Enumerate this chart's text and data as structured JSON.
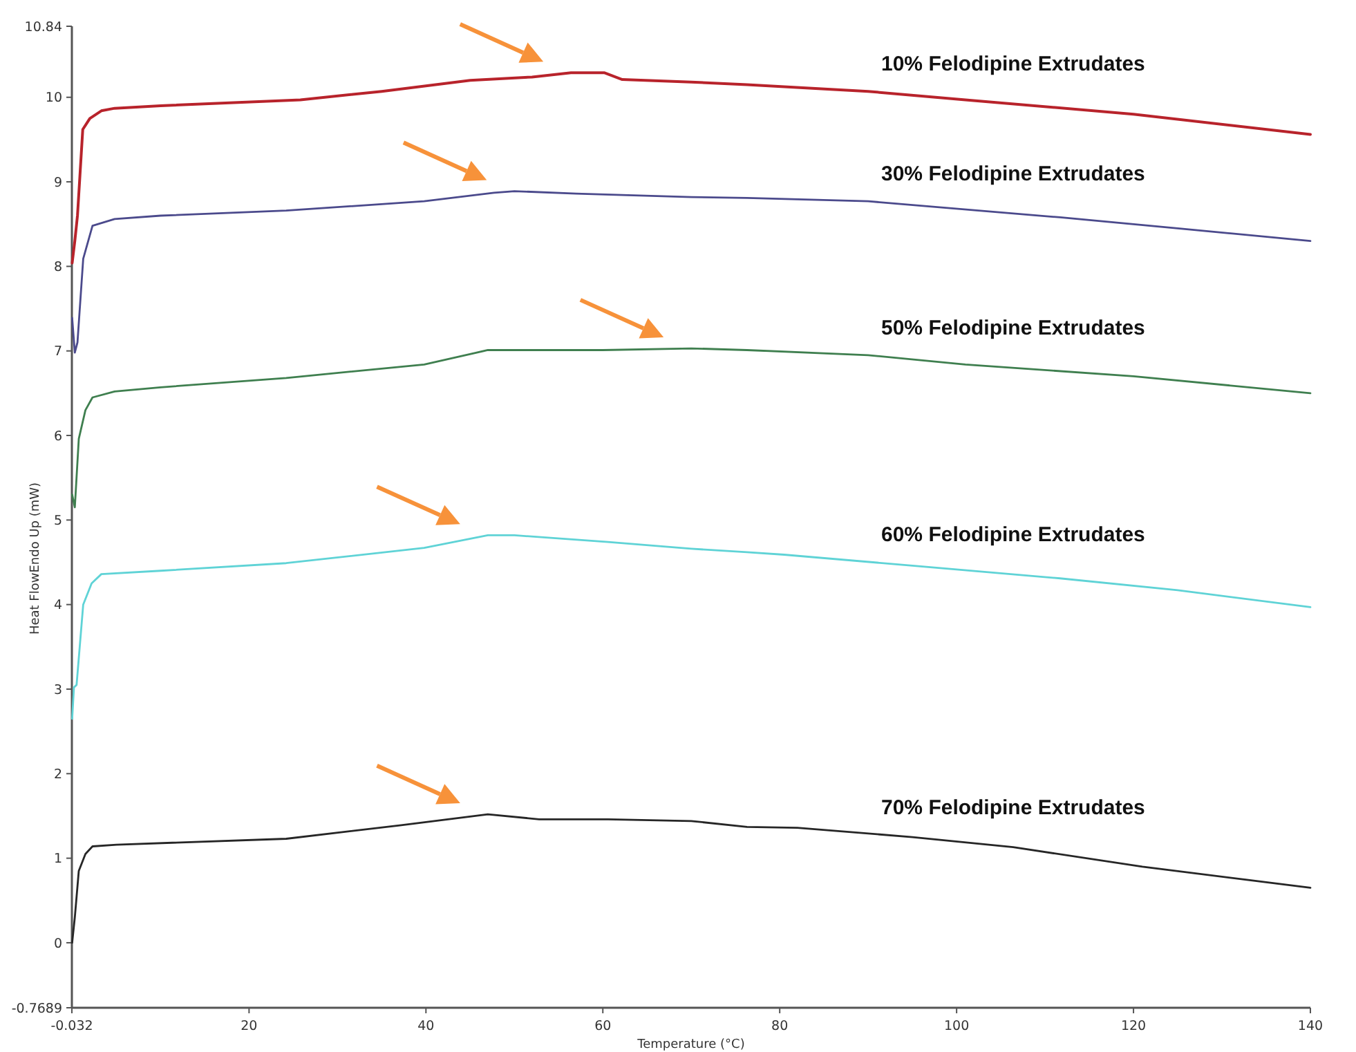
{
  "chart_data": {
    "type": "line",
    "xlabel": "Temperature (°C)",
    "ylabel": "Heat FlowEndo Up (mW)",
    "xlim": [
      -0.032,
      140
    ],
    "xticks": [
      -0.032,
      20,
      40,
      60,
      80,
      100,
      120,
      140
    ],
    "ylim": [
      -0.7689,
      10.84
    ],
    "yticks": [
      -0.7689,
      0,
      1,
      2,
      3,
      4,
      5,
      6,
      7,
      8,
      9,
      10,
      10.84
    ],
    "grid": false,
    "marker": "none",
    "line_style": "solid",
    "series": [
      {
        "name": "10% Felodipine Extrudates",
        "color": "#b8232b",
        "x": [
          0,
          0.3,
          0.6,
          1.2,
          2.0,
          3.3,
          4.8,
          10,
          25.8,
          35,
          45,
          52,
          56.4,
          60.2,
          62.2,
          70,
          76.3,
          90,
          101,
          120,
          140
        ],
        "values": [
          8.04,
          8.3,
          8.6,
          9.62,
          9.75,
          9.84,
          9.87,
          9.9,
          9.97,
          10.07,
          10.2,
          10.24,
          10.29,
          10.29,
          10.21,
          10.18,
          10.15,
          10.07,
          9.97,
          9.8,
          9.56
        ]
      },
      {
        "name": "30% Felodipine Extrudates",
        "color": "#4b4a8c",
        "x": [
          0,
          0.3,
          0.6,
          1.25,
          2.3,
          4.8,
          10,
          24.2,
          39.8,
          47.7,
          50,
          57,
          70,
          76.3,
          90,
          111.7,
          125,
          140
        ],
        "values": [
          7.39,
          6.98,
          7.1,
          8.09,
          8.48,
          8.56,
          8.6,
          8.66,
          8.77,
          8.87,
          8.89,
          8.86,
          8.82,
          8.81,
          8.77,
          8.58,
          8.45,
          8.3
        ]
      },
      {
        "name": "50% Felodipine Extrudates",
        "color": "#3f7f4f",
        "x": [
          0,
          0.3,
          0.75,
          1.5,
          2.3,
          4.8,
          10,
          24.2,
          39.8,
          47,
          60,
          70,
          76.3,
          90,
          101,
          120,
          140
        ],
        "values": [
          5.3,
          5.15,
          5.96,
          6.3,
          6.45,
          6.52,
          6.57,
          6.68,
          6.84,
          7.01,
          7.01,
          7.03,
          7.01,
          6.95,
          6.84,
          6.7,
          6.5
        ]
      },
      {
        "name": "60% Felodipine Extrudates",
        "color": "#5fd3d6",
        "x": [
          0,
          0.2,
          0.5,
          1.25,
          2.2,
          3.3,
          10,
          24.2,
          39.8,
          47,
          50,
          60.6,
          70,
          76.3,
          80.5,
          95,
          111.7,
          125,
          140
        ],
        "values": [
          2.65,
          3.02,
          3.05,
          4.0,
          4.25,
          4.36,
          4.4,
          4.49,
          4.67,
          4.82,
          4.82,
          4.74,
          4.66,
          4.62,
          4.59,
          4.46,
          4.31,
          4.17,
          3.97
        ]
      },
      {
        "name": "70% Felodipine Extrudates",
        "color": "#262626",
        "x": [
          0,
          0.3,
          0.75,
          1.5,
          2.3,
          5,
          24.2,
          37.2,
          47,
          52.8,
          60.6,
          70,
          76.3,
          82,
          95,
          106.4,
          121,
          140
        ],
        "values": [
          0,
          0.3,
          0.85,
          1.05,
          1.14,
          1.16,
          1.23,
          1.39,
          1.52,
          1.46,
          1.46,
          1.44,
          1.37,
          1.36,
          1.25,
          1.13,
          0.9,
          0.65
        ]
      }
    ]
  }
}
